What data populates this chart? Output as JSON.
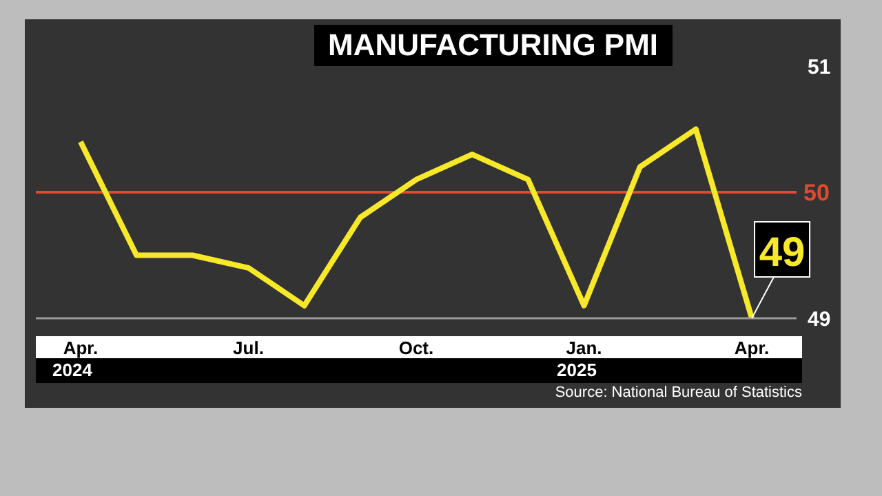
{
  "chart_data": {
    "type": "line",
    "title": "MANUFACTURING PMI",
    "categories": [
      "Apr.",
      null,
      null,
      "Jul.",
      null,
      null,
      "Oct.",
      null,
      null,
      "Jan.",
      null,
      null,
      "Apr."
    ],
    "series": [
      {
        "color": "#f7e82a",
        "values": [
          50.4,
          49.5,
          49.5,
          49.4,
          49.1,
          49.8,
          50.1,
          50.3,
          50.1,
          49.1,
          50.2,
          50.5,
          49.0
        ],
        "value_labels": [
          null,
          null,
          null,
          null,
          null,
          null,
          null,
          null,
          null,
          null,
          null,
          null,
          "49"
        ]
      }
    ],
    "ylim": [
      49,
      51
    ],
    "yticks": [
      49,
      51
    ],
    "marker": "none",
    "legend": false,
    "ref_lines": [
      {
        "axis": "y",
        "value": 50,
        "label": "50",
        "color": "#e04a2f"
      }
    ],
    "annotations": [
      "2024",
      "2025",
      "Source: National Bureau of Statistics"
    ]
  }
}
